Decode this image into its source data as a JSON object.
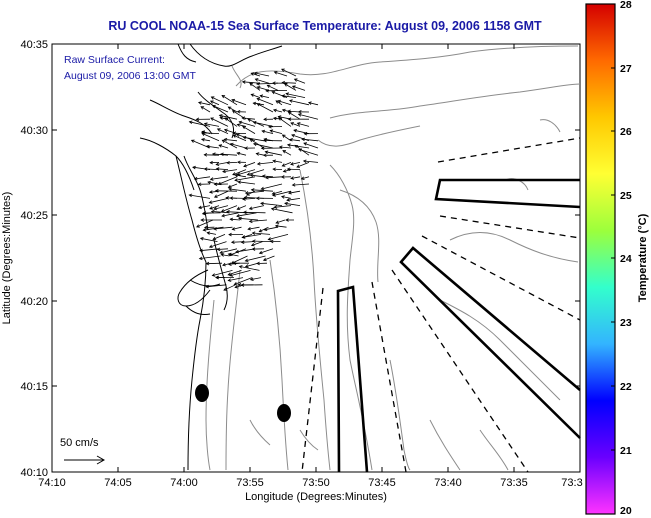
{
  "title": "RU COOL  NOAA-15  Sea Surface Temperature:  August 09, 2006 1158 GMT",
  "annotation": {
    "line1": "Raw Surface Current:",
    "line2": "August 09, 2006 13:00 GMT"
  },
  "scale_label": "50 cm/s",
  "x_axis": {
    "label": "Longitude (Degrees:Minutes)",
    "ticks": [
      "74:10",
      "74:05",
      "74:00",
      "73:55",
      "73:50",
      "73:45",
      "73:40",
      "73:35",
      "73:3"
    ]
  },
  "y_axis": {
    "label": "Latitude (Degrees:Minutes)",
    "ticks": [
      "40:35",
      "40:30",
      "40:25",
      "40:20",
      "40:15",
      "40:10"
    ]
  },
  "colorbar": {
    "label": "Temperature (°C)",
    "ticks": [
      "28",
      "27",
      "26",
      "25",
      "24",
      "23",
      "22",
      "21",
      "20"
    ],
    "colors": [
      "#d40000",
      "#ff6a00",
      "#ffc800",
      "#ffff33",
      "#9cff3c",
      "#33ffcc",
      "#33b4ff",
      "#0000ff",
      "#6a00ff",
      "#ff33ff"
    ]
  },
  "colors": {
    "title": "#1a1aa6",
    "coastline": "#000000",
    "contour": "#8c8c8c",
    "vector": "#000000"
  }
}
